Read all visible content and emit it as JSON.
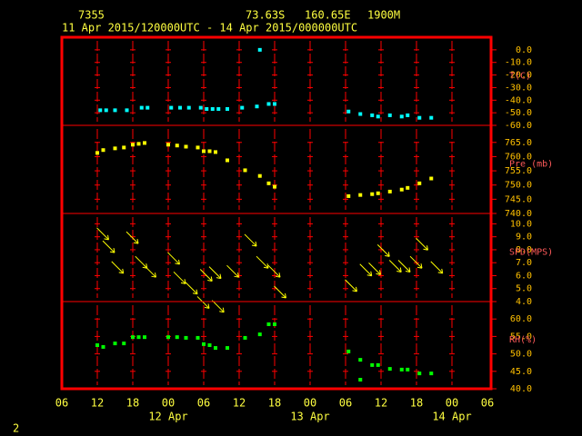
{
  "header": {
    "station": "7355",
    "latitude": "73.63S",
    "longitude": "160.65E",
    "elevation": "1900M",
    "period": "11 Apr 2015/120000UTC - 14 Apr 2015/000000UTC",
    "page": "2"
  },
  "chart_data": [
    {
      "type": "scatter",
      "y_label": "T(C)",
      "color": "#00ffff",
      "xlim": [
        0,
        72
      ],
      "ylim": [
        -60,
        10
      ],
      "yticks": [
        {
          "value": 0,
          "label": "0.0"
        },
        {
          "value": -10,
          "label": "-10.0"
        },
        {
          "value": -20,
          "label": "-20.0"
        },
        {
          "value": -30,
          "label": "-30.0"
        },
        {
          "value": -40,
          "label": "-40.0"
        },
        {
          "value": -50,
          "label": "-50.0"
        },
        {
          "value": -60,
          "label": "-60.0"
        }
      ],
      "x": [
        6.5,
        7.5,
        9,
        11,
        13.5,
        14.5,
        18.5,
        20,
        21.5,
        23.5,
        24.5,
        25.5,
        26.5,
        28,
        30.5,
        33,
        33.5,
        35,
        36,
        48.5,
        50.5,
        52.5,
        53.5,
        55.5,
        57.5,
        58.5,
        60.5,
        62.5
      ],
      "values": [
        -48,
        -48,
        -48,
        -48,
        -46,
        -46,
        -46,
        -46,
        -46,
        -46,
        -47,
        -47,
        -47,
        -47,
        -46,
        -45,
        0,
        -43,
        -43,
        -49,
        -51,
        -52,
        -53,
        -52,
        -53,
        -52,
        -54,
        -54
      ]
    },
    {
      "type": "scatter",
      "y_label": "Pre (mb)",
      "color": "#ffff00",
      "xlim": [
        0,
        72
      ],
      "ylim": [
        740,
        771
      ],
      "yticks": [
        {
          "value": 765,
          "label": "765.0"
        },
        {
          "value": 760,
          "label": "760.0"
        },
        {
          "value": 755,
          "label": "755.0"
        },
        {
          "value": 750,
          "label": "750.0"
        },
        {
          "value": 745,
          "label": "745.0"
        },
        {
          "value": 740,
          "label": "740.0"
        }
      ],
      "x": [
        6,
        7,
        9,
        10.5,
        12,
        13,
        14,
        18,
        19.5,
        21,
        23,
        24,
        25,
        26,
        28,
        31,
        33.5,
        35,
        36,
        48.5,
        50.5,
        52.5,
        53.5,
        55.5,
        57.5,
        58.5,
        60.5,
        62.5
      ],
      "values": [
        761.3,
        762.3,
        762.9,
        763.2,
        764.2,
        764.5,
        764.8,
        764.2,
        763.9,
        763.5,
        763.2,
        761.9,
        761.9,
        761.6,
        758.7,
        755.2,
        753.2,
        750.6,
        749.4,
        746.1,
        746.5,
        746.8,
        747.1,
        747.7,
        748.4,
        749,
        750.6,
        752.3
      ]
    },
    {
      "type": "vector",
      "y_label": "SPD(MPS)",
      "color": "#ffff00",
      "xlim": [
        0,
        72
      ],
      "ylim": [
        4,
        10.8
      ],
      "yticks": [
        {
          "value": 10,
          "label": "10.0"
        },
        {
          "value": 9,
          "label": "9.0"
        },
        {
          "value": 8,
          "label": "8.0"
        },
        {
          "value": 7,
          "label": "7.0"
        },
        {
          "value": 6,
          "label": "6.0"
        },
        {
          "value": 5,
          "label": "5.0"
        },
        {
          "value": 4,
          "label": "4.0"
        }
      ],
      "x": [
        7,
        8,
        9.5,
        12,
        13.5,
        15,
        19,
        20,
        22,
        24,
        24.5,
        26,
        26.5,
        29,
        32,
        34,
        36,
        37,
        49,
        51.5,
        53,
        54.5,
        56.5,
        58,
        60,
        61,
        63.5
      ],
      "values": [
        9.2,
        8.2,
        6.6,
        8.9,
        7,
        6.3,
        7.3,
        5.8,
        5,
        3.9,
        6,
        6.2,
        3.6,
        6.3,
        8.7,
        7,
        6.3,
        4.7,
        5.2,
        6.4,
        6.5,
        7.9,
        6.7,
        6.7,
        7,
        8.4,
        6.6
      ]
    },
    {
      "type": "scatter",
      "y_label": "RH(%)",
      "color": "#00ff00",
      "xlim": [
        0,
        72
      ],
      "ylim": [
        40,
        65
      ],
      "yticks": [
        {
          "value": 60,
          "label": "60.0"
        },
        {
          "value": 55,
          "label": "55.0"
        },
        {
          "value": 50,
          "label": "50.0"
        },
        {
          "value": 45,
          "label": "45.0"
        },
        {
          "value": 40,
          "label": "40.0"
        }
      ],
      "xticks": [
        {
          "value": 0,
          "label": "06"
        },
        {
          "value": 6,
          "label": "12"
        },
        {
          "value": 12,
          "label": "18"
        },
        {
          "value": 18,
          "label": "00"
        },
        {
          "value": 24,
          "label": "06"
        },
        {
          "value": 30,
          "label": "12"
        },
        {
          "value": 36,
          "label": "18"
        },
        {
          "value": 42,
          "label": "00"
        },
        {
          "value": 48,
          "label": "06"
        },
        {
          "value": 54,
          "label": "12"
        },
        {
          "value": 60,
          "label": "18"
        },
        {
          "value": 66,
          "label": "00"
        },
        {
          "value": 72,
          "label": "06"
        }
      ],
      "annotations": [
        {
          "text": "12 Apr",
          "x": 18
        },
        {
          "text": "13 Apr",
          "x": 42
        },
        {
          "text": "14 Apr",
          "x": 66
        }
      ],
      "x": [
        6,
        7,
        9,
        10.5,
        12,
        13,
        14,
        18,
        19.5,
        21,
        23,
        24,
        25,
        26,
        28,
        31,
        33.5,
        35,
        36,
        48.5,
        50.5,
        50.5,
        52.5,
        53.5,
        55.5,
        57.5,
        58.5,
        60.5,
        62.5
      ],
      "values": [
        52.5,
        52,
        53,
        53,
        54.8,
        54.8,
        54.8,
        54.8,
        54.8,
        54.6,
        54.6,
        52.8,
        52.5,
        51.7,
        51.7,
        54.6,
        55.6,
        58.5,
        58.5,
        50.7,
        48.3,
        42.6,
        46.8,
        46.8,
        45.7,
        45.5,
        45.5,
        44.4,
        44.4
      ]
    }
  ]
}
